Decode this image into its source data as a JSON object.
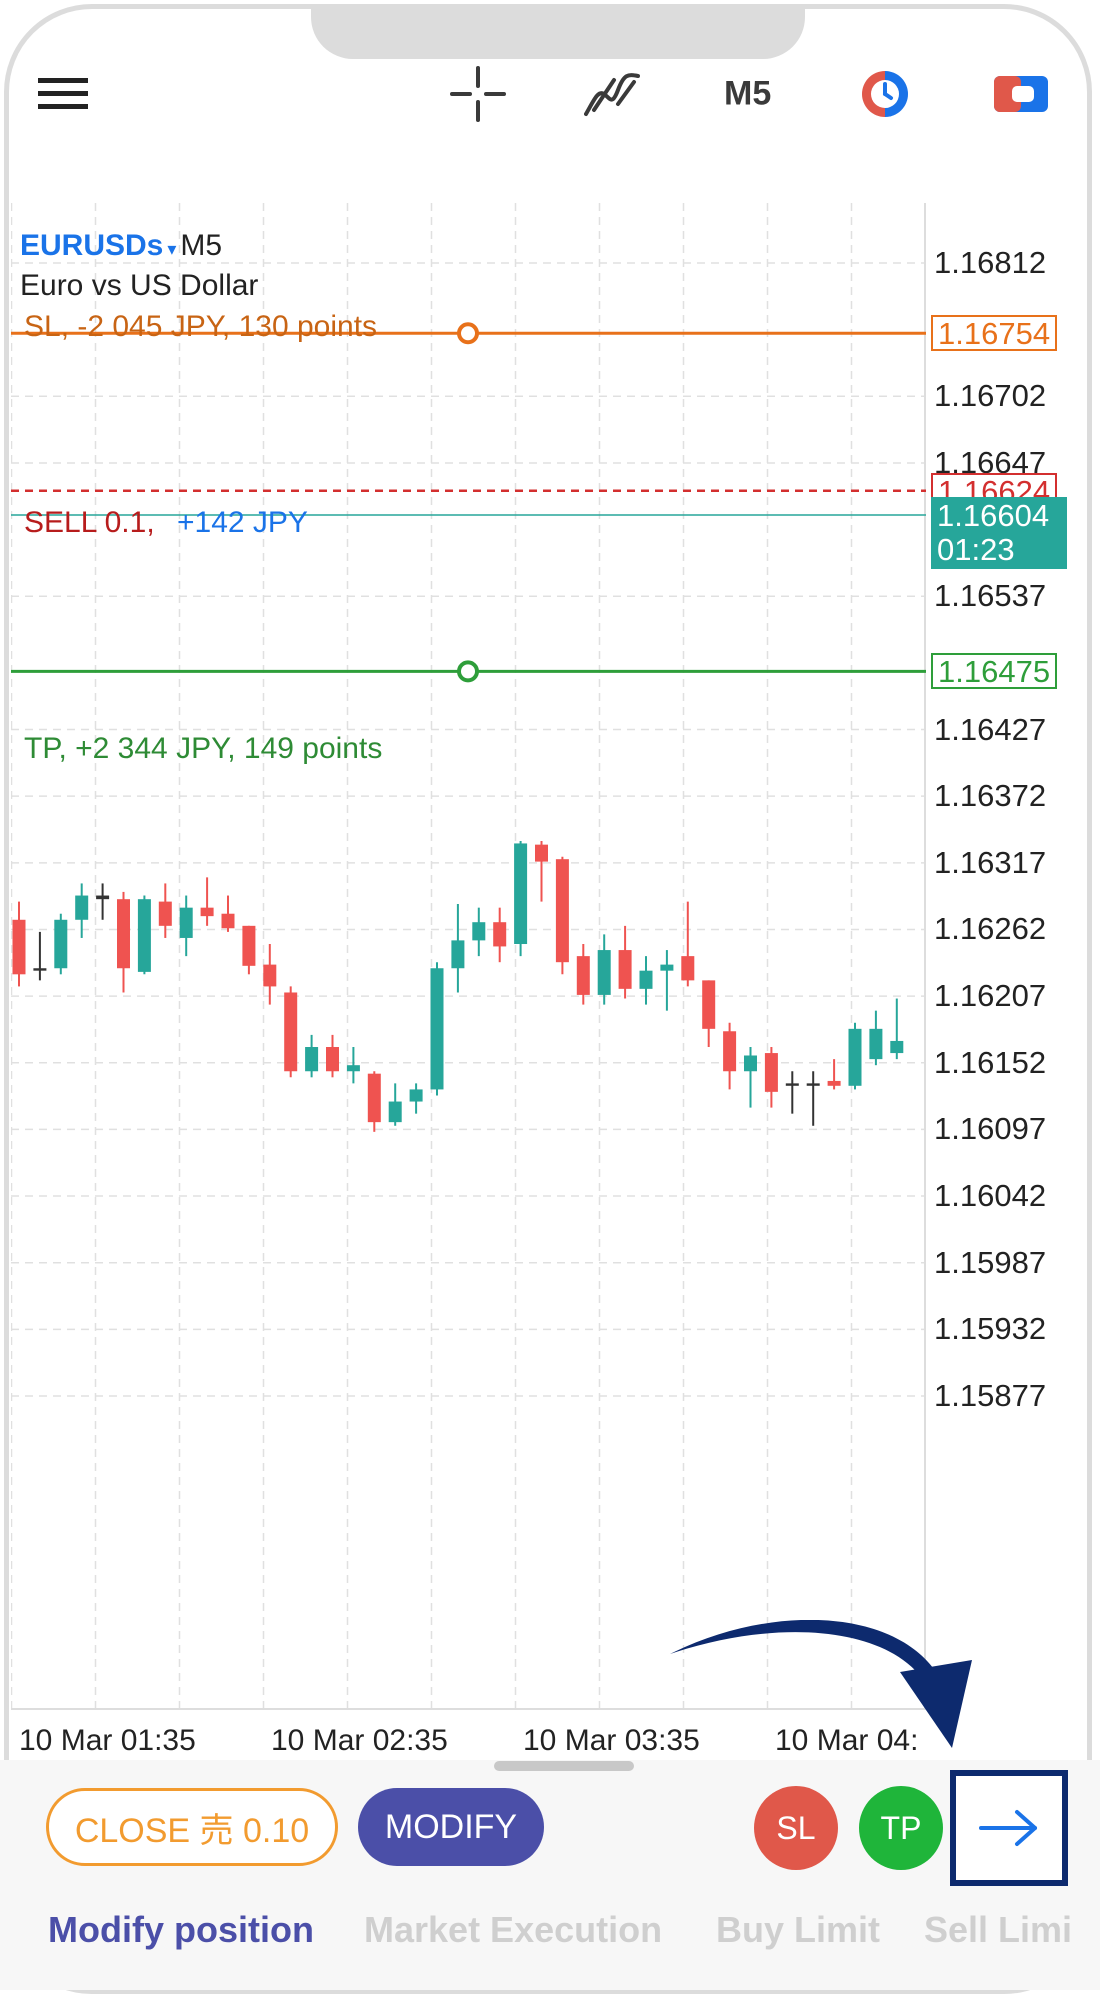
{
  "toolbar": {
    "menu_icon": "hamburger-menu-icon",
    "crosshair_icon": "crosshair-icon",
    "indicators_icon": "indicators-icon",
    "timeframe": "M5",
    "clock_icon": "clock-icon",
    "objects_icon": "objects-icon"
  },
  "chart_info": {
    "symbol": "EURUSDs",
    "dropdown_arrow": "▾",
    "timeframe": "M5",
    "description": "Euro vs US Dollar"
  },
  "lines": {
    "sl": {
      "label": "SL, -2 045 JPY, 130 points",
      "price": "1.16754",
      "color": "#e8711a"
    },
    "sell": {
      "label": "SELL 0.1,",
      "profit": "+142 JPY",
      "price": "1.16624",
      "color": "#d32f2f"
    },
    "current": {
      "price": "1.16604",
      "countdown": "01:23",
      "color": "#26a69a"
    },
    "tp": {
      "label": "TP, +2 344 JPY, 149 points",
      "price": "1.16475",
      "color": "#2e9e3a"
    }
  },
  "price_axis": [
    "1.16812",
    "1.16702",
    "1.16647",
    "1.16537",
    "1.16427",
    "1.16372",
    "1.16317",
    "1.16262",
    "1.16207",
    "1.16152",
    "1.16097",
    "1.16042",
    "1.15987",
    "1.15932",
    "1.15877"
  ],
  "time_axis": [
    "10 Mar 01:35",
    "10 Mar 02:35",
    "10 Mar 03:35",
    "10 Mar 04:"
  ],
  "chart_data": {
    "type": "candlestick",
    "symbol": "EURUSDs",
    "timeframe": "M5",
    "up_color": "#26a69a",
    "down_color": "#ef5350",
    "candles": [
      {
        "o": 1.1627,
        "h": 1.16285,
        "l": 1.16215,
        "c": 1.16225
      },
      {
        "o": 1.16228,
        "h": 1.1626,
        "l": 1.1622,
        "c": 1.1623
      },
      {
        "o": 1.1623,
        "h": 1.16275,
        "l": 1.16225,
        "c": 1.1627
      },
      {
        "o": 1.1627,
        "h": 1.163,
        "l": 1.16255,
        "c": 1.1629
      },
      {
        "o": 1.1629,
        "h": 1.163,
        "l": 1.1627,
        "c": 1.16287
      },
      {
        "o": 1.16287,
        "h": 1.16293,
        "l": 1.1621,
        "c": 1.1623
      },
      {
        "o": 1.16227,
        "h": 1.1629,
        "l": 1.16225,
        "c": 1.16287
      },
      {
        "o": 1.16285,
        "h": 1.163,
        "l": 1.16255,
        "c": 1.16265
      },
      {
        "o": 1.16255,
        "h": 1.1629,
        "l": 1.1624,
        "c": 1.1628
      },
      {
        "o": 1.1628,
        "h": 1.16305,
        "l": 1.16265,
        "c": 1.16273
      },
      {
        "o": 1.16275,
        "h": 1.1629,
        "l": 1.1626,
        "c": 1.16263
      },
      {
        "o": 1.16265,
        "h": 1.16265,
        "l": 1.16225,
        "c": 1.16232
      },
      {
        "o": 1.16233,
        "h": 1.1625,
        "l": 1.162,
        "c": 1.16215
      },
      {
        "o": 1.1621,
        "h": 1.16215,
        "l": 1.1614,
        "c": 1.16145
      },
      {
        "o": 1.16145,
        "h": 1.16175,
        "l": 1.1614,
        "c": 1.16165
      },
      {
        "o": 1.16165,
        "h": 1.16175,
        "l": 1.1614,
        "c": 1.16145
      },
      {
        "o": 1.16145,
        "h": 1.16165,
        "l": 1.16135,
        "c": 1.1615
      },
      {
        "o": 1.16143,
        "h": 1.16145,
        "l": 1.16095,
        "c": 1.16103
      },
      {
        "o": 1.16103,
        "h": 1.16135,
        "l": 1.161,
        "c": 1.1612
      },
      {
        "o": 1.1612,
        "h": 1.16135,
        "l": 1.1611,
        "c": 1.1613
      },
      {
        "o": 1.1613,
        "h": 1.16235,
        "l": 1.16125,
        "c": 1.1623
      },
      {
        "o": 1.1623,
        "h": 1.16283,
        "l": 1.1621,
        "c": 1.16253
      },
      {
        "o": 1.16253,
        "h": 1.1628,
        "l": 1.1624,
        "c": 1.16268
      },
      {
        "o": 1.16268,
        "h": 1.1628,
        "l": 1.16235,
        "c": 1.16248
      },
      {
        "o": 1.1625,
        "h": 1.16335,
        "l": 1.1624,
        "c": 1.16333
      },
      {
        "o": 1.16332,
        "h": 1.16335,
        "l": 1.16285,
        "c": 1.16318
      },
      {
        "o": 1.1632,
        "h": 1.16322,
        "l": 1.16225,
        "c": 1.16235
      },
      {
        "o": 1.1624,
        "h": 1.1625,
        "l": 1.162,
        "c": 1.16208
      },
      {
        "o": 1.16208,
        "h": 1.16258,
        "l": 1.162,
        "c": 1.16245
      },
      {
        "o": 1.16245,
        "h": 1.16265,
        "l": 1.16205,
        "c": 1.16213
      },
      {
        "o": 1.16213,
        "h": 1.1624,
        "l": 1.162,
        "c": 1.16228
      },
      {
        "o": 1.16228,
        "h": 1.16245,
        "l": 1.16195,
        "c": 1.16233
      },
      {
        "o": 1.1624,
        "h": 1.16285,
        "l": 1.16215,
        "c": 1.1622
      },
      {
        "o": 1.1622,
        "h": 1.1622,
        "l": 1.16165,
        "c": 1.1618
      },
      {
        "o": 1.16178,
        "h": 1.16185,
        "l": 1.1613,
        "c": 1.16145
      },
      {
        "o": 1.16145,
        "h": 1.16165,
        "l": 1.16115,
        "c": 1.16158
      },
      {
        "o": 1.1616,
        "h": 1.16165,
        "l": 1.16115,
        "c": 1.16128
      },
      {
        "o": 1.16135,
        "h": 1.16145,
        "l": 1.1611,
        "c": 1.16133
      },
      {
        "o": 1.16133,
        "h": 1.16145,
        "l": 1.161,
        "c": 1.16135
      },
      {
        "o": 1.16137,
        "h": 1.16155,
        "l": 1.1613,
        "c": 1.16133
      },
      {
        "o": 1.16133,
        "h": 1.16185,
        "l": 1.1613,
        "c": 1.1618
      },
      {
        "o": 1.16155,
        "h": 1.16195,
        "l": 1.1615,
        "c": 1.1618
      },
      {
        "o": 1.1616,
        "h": 1.16205,
        "l": 1.16155,
        "c": 1.1617
      }
    ]
  },
  "bottom": {
    "close_button": "CLOSE 売 0.10",
    "modify_button": "MODIFY",
    "sl_button": "SL",
    "tp_button": "TP",
    "next_icon": "arrow-right-icon",
    "colors": {
      "close": "#f29b2f",
      "modify": "#4b4fa8",
      "sl": "#e0584a",
      "tp": "#1fb53a",
      "highlight": "#0d2a6e"
    }
  },
  "tabs": [
    {
      "label": "Modify position",
      "active": true
    },
    {
      "label": "Market Execution",
      "active": false
    },
    {
      "label": "Buy Limit",
      "active": false
    },
    {
      "label": "Sell Limi",
      "active": false
    }
  ],
  "annotation": {
    "arrow_icon": "curved-pointer-arrow-icon",
    "color": "#0d2a6e"
  }
}
